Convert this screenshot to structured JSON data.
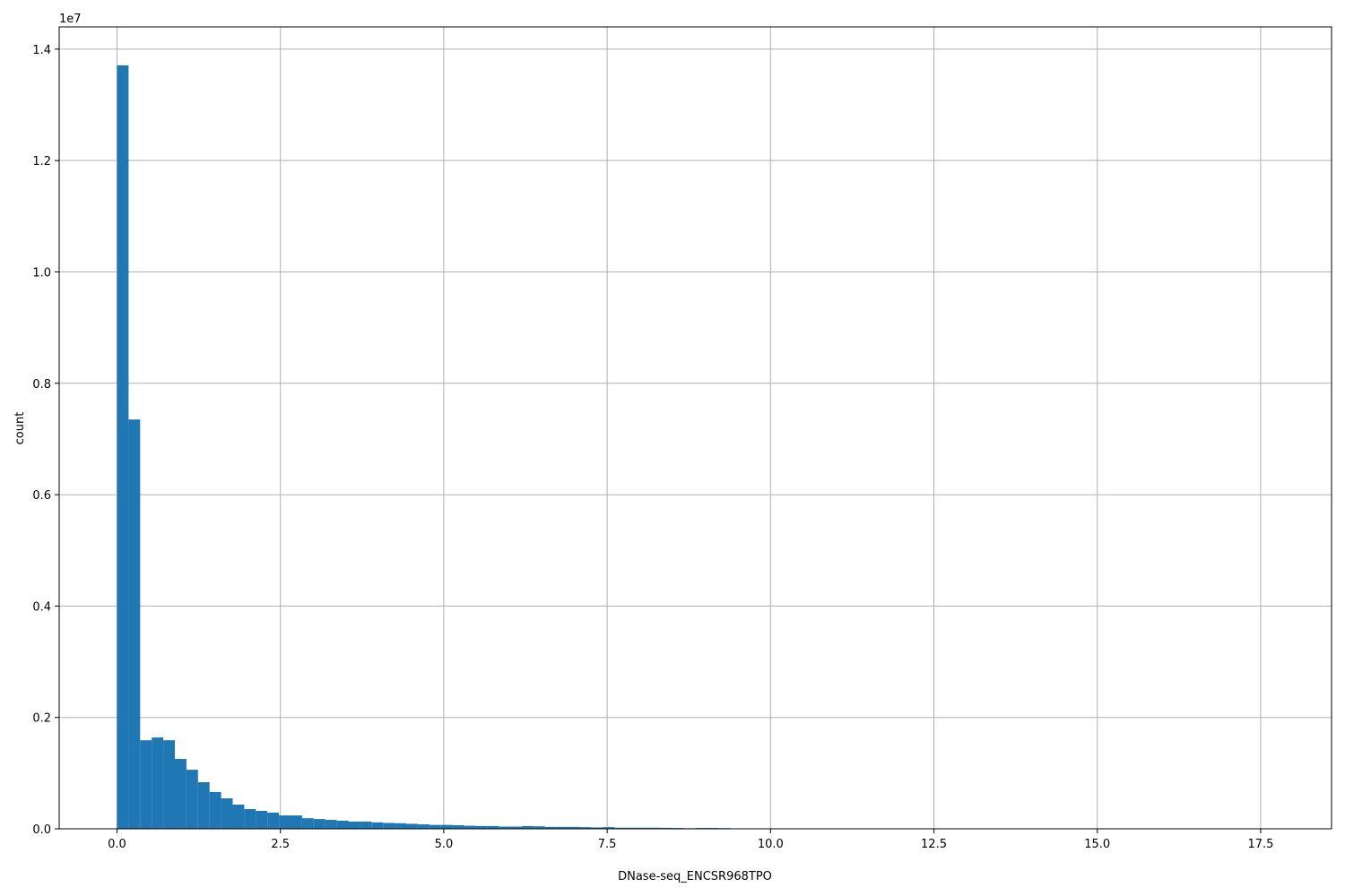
{
  "chart_data": {
    "type": "bar",
    "title": "",
    "xlabel": "DNase-seq_ENCSR968TPO",
    "ylabel": "count",
    "y_offset_label": "1e7",
    "bin_range": [
      0,
      17.7
    ],
    "bins": 100,
    "xlim": [
      -0.885,
      18.585
    ],
    "ylim": [
      0,
      14400000
    ],
    "xticks": [
      0,
      2.5,
      5.0,
      7.5,
      10.0,
      12.5,
      15.0,
      17.5
    ],
    "xtick_labels": [
      "0.0",
      "2.5",
      "5.0",
      "7.5",
      "10.0",
      "12.5",
      "15.0",
      "17.5"
    ],
    "yticks": [
      0,
      2000000,
      4000000,
      6000000,
      8000000,
      10000000,
      12000000,
      14000000
    ],
    "ytick_labels": [
      "0.0",
      "0.2",
      "0.4",
      "0.6",
      "0.8",
      "1.0",
      "1.2",
      "1.4"
    ],
    "grid": true,
    "bar_color": "#1f77b4",
    "grid_color": "#b0b0b0",
    "values": [
      13710000,
      7350000,
      1590000,
      1640000,
      1590000,
      1255000,
      1060000,
      837000,
      660000,
      547000,
      435000,
      354000,
      322000,
      290000,
      240000,
      240000,
      190000,
      175000,
      160000,
      145000,
      130000,
      130000,
      115000,
      105000,
      100000,
      90000,
      80000,
      70000,
      70000,
      65000,
      55000,
      50000,
      50000,
      40000,
      40000,
      50000,
      45000,
      35000,
      35000,
      35000,
      30000,
      25000,
      30000,
      20000,
      20000,
      20000,
      20000,
      18000,
      15000,
      10000,
      15000,
      15000,
      12000,
      8000,
      6000,
      5000,
      4000,
      3500,
      3000,
      2500,
      2000,
      1800,
      1600,
      1400,
      1200,
      1000,
      900,
      800,
      700,
      600,
      500,
      450,
      400,
      350,
      300,
      260,
      220,
      200,
      180,
      160,
      140,
      120,
      100,
      90,
      80,
      70,
      60,
      50,
      40,
      35,
      30,
      25,
      20,
      15,
      12,
      10,
      8,
      6,
      4,
      2
    ]
  }
}
